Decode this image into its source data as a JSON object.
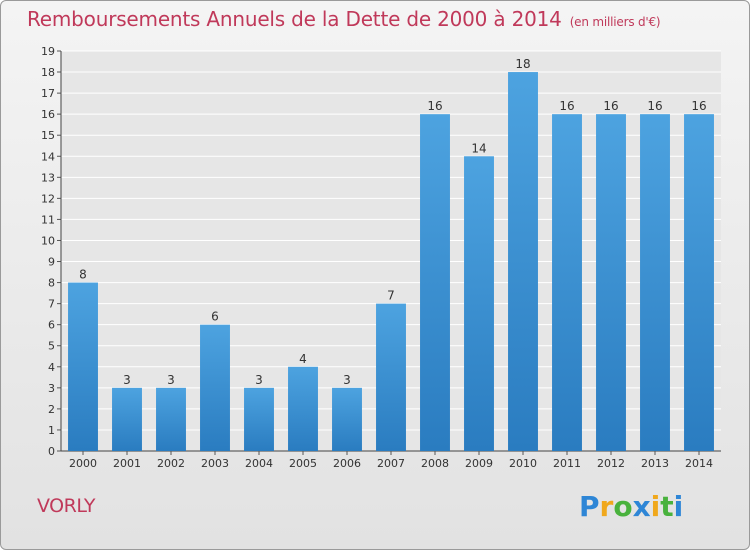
{
  "chart_data": {
    "type": "bar",
    "title": "Remboursements Annuels de la Dette de 2000 à 2014",
    "unit": "(en milliers d'€)",
    "categories": [
      "2000",
      "2001",
      "2002",
      "2003",
      "2004",
      "2005",
      "2006",
      "2007",
      "2008",
      "2009",
      "2010",
      "2011",
      "2012",
      "2013",
      "2014"
    ],
    "values": [
      8,
      3,
      3,
      6,
      3,
      4,
      3,
      7,
      16,
      14,
      18,
      16,
      16,
      16,
      16
    ],
    "ylim": [
      0,
      19
    ],
    "yticks": [
      0,
      1,
      2,
      3,
      4,
      5,
      6,
      7,
      8,
      9,
      10,
      11,
      12,
      13,
      14,
      15,
      16,
      17,
      18,
      19
    ],
    "grid": "horizontal",
    "bar_color": "#4da3e0",
    "bar_color_dark": "#2a7cc0"
  },
  "location": "VORLY",
  "logo": {
    "letters": [
      "P",
      "r",
      "o",
      "x",
      "i",
      "t",
      "i"
    ],
    "colors": [
      "#2e86d6",
      "#f0a81c",
      "#49b23d",
      "#2e86d6",
      "#f0a81c",
      "#49b23d",
      "#2e86d6"
    ]
  }
}
